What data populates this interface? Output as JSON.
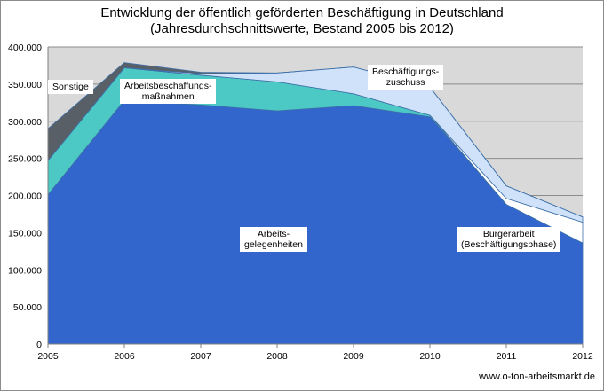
{
  "chart_data": {
    "type": "area",
    "stacked": true,
    "title": "Entwicklung der öffentlich geförderten Beschäftigung in Deutschland",
    "subtitle": "(Jahresdurchschnittswerte, Bestand 2005 bis 2012)",
    "categories": [
      "2005",
      "2006",
      "2007",
      "2008",
      "2009",
      "2010",
      "2011",
      "2012"
    ],
    "y_ticks": [
      "0",
      "50.000",
      "100.000",
      "150.000",
      "200.000",
      "250.000",
      "300.000",
      "350.000",
      "400.000"
    ],
    "ylim": [
      0,
      400000
    ],
    "grid": true,
    "legend": "none",
    "series": [
      {
        "name": "Arbeitsgelegenheiten",
        "values": [
          201000,
          328000,
          322000,
          314000,
          321000,
          306000,
          188000,
          136000
        ],
        "color": "#3366cc"
      },
      {
        "name": "Arbeitsbeschaffungsmaßnahmen",
        "values": [
          46000,
          44000,
          40000,
          39000,
          16000,
          2000,
          0,
          0
        ],
        "color": "#4cc9c4"
      },
      {
        "name": "Bürgerarbeit (Beschäftigungsphase)",
        "values": [
          0,
          0,
          0,
          0,
          0,
          0,
          8000,
          28000
        ],
        "color": "#ffffff"
      },
      {
        "name": "Beschäftigungszuschuss",
        "values": [
          0,
          0,
          2000,
          12000,
          36000,
          38000,
          17000,
          7000
        ],
        "color": "#cfe2fa"
      },
      {
        "name": "Sonstige",
        "values": [
          43000,
          7000,
          2000,
          0,
          0,
          0,
          0,
          0
        ],
        "color": "#595f66"
      }
    ],
    "annotations": {
      "sonstige": "Sonstige",
      "abm": [
        "Arbeitsbeschaffungs-",
        "maßnahmen"
      ],
      "bez": [
        "Beschäftigungs-",
        "zuschuss"
      ],
      "agh": [
        "Arbeits-",
        "gelegenheiten"
      ],
      "buerger": [
        "Bürgerarbeit",
        "(Beschäftigungsphase)"
      ]
    },
    "source": "www.o-ton-arbeitsmarkt.de"
  }
}
